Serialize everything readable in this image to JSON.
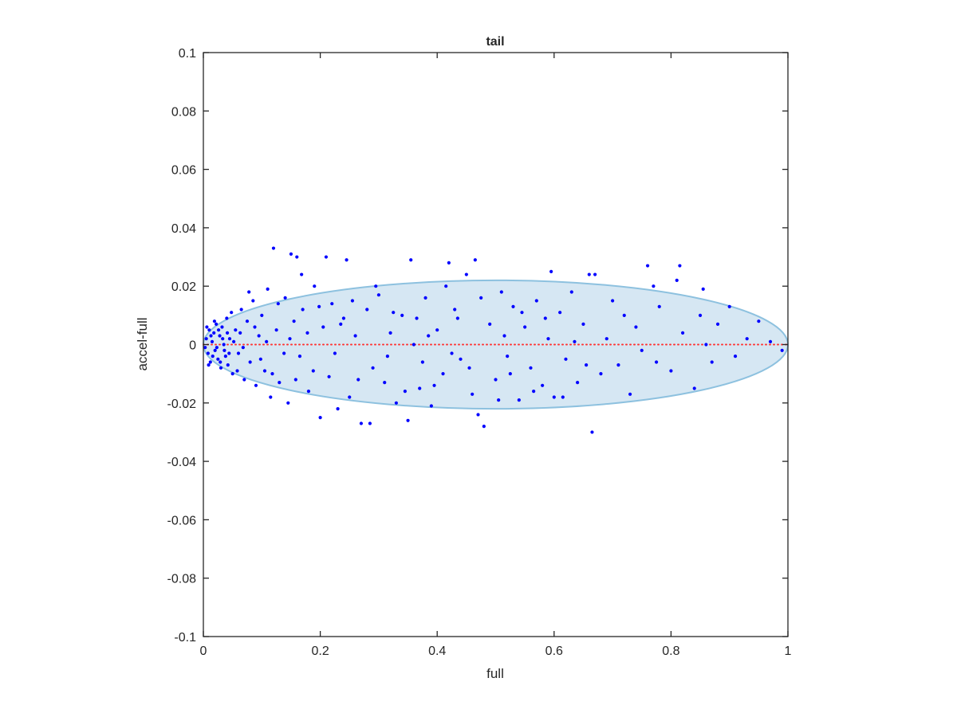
{
  "chart_data": {
    "type": "scatter",
    "title": "tail",
    "xlabel": "full",
    "ylabel": "accel-full",
    "color": "#0000ff",
    "x": [
      0.005,
      0.008,
      0.01,
      0.012,
      0.015,
      0.018,
      0.02,
      0.022,
      0.025,
      0.028,
      0.03,
      0.032,
      0.035,
      0.038,
      0.04,
      0.042,
      0.045,
      0.048,
      0.05,
      0.055,
      0.06,
      0.065,
      0.07,
      0.075,
      0.08,
      0.085,
      0.09,
      0.095,
      0.1,
      0.105,
      0.11,
      0.115,
      0.12,
      0.125,
      0.13,
      0.14,
      0.145,
      0.15,
      0.155,
      0.16,
      0.165,
      0.17,
      0.18,
      0.19,
      0.2,
      0.205,
      0.21,
      0.215,
      0.22,
      0.23,
      0.24,
      0.245,
      0.25,
      0.26,
      0.27,
      0.28,
      0.285,
      0.29,
      0.3,
      0.31,
      0.32,
      0.33,
      0.34,
      0.35,
      0.355,
      0.36,
      0.37,
      0.38,
      0.39,
      0.4,
      0.41,
      0.42,
      0.43,
      0.44,
      0.45,
      0.46,
      0.465,
      0.47,
      0.48,
      0.49,
      0.5,
      0.51,
      0.52,
      0.53,
      0.54,
      0.55,
      0.56,
      0.57,
      0.58,
      0.59,
      0.595,
      0.6,
      0.61,
      0.62,
      0.63,
      0.64,
      0.65,
      0.66,
      0.665,
      0.67,
      0.68,
      0.69,
      0.7,
      0.71,
      0.72,
      0.73,
      0.74,
      0.75,
      0.76,
      0.77,
      0.775,
      0.78,
      0.8,
      0.81,
      0.815,
      0.82,
      0.84,
      0.85,
      0.855,
      0.86,
      0.87,
      0.88,
      0.9,
      0.91,
      0.93,
      0.95,
      0.97,
      0.99,
      0.003,
      0.006,
      0.009,
      0.013,
      0.016,
      0.019,
      0.023,
      0.026,
      0.029,
      0.033,
      0.036,
      0.041,
      0.044,
      0.052,
      0.058,
      0.063,
      0.068,
      0.078,
      0.088,
      0.098,
      0.108,
      0.118,
      0.128,
      0.138,
      0.148,
      0.158,
      0.168,
      0.178,
      0.188,
      0.198,
      0.225,
      0.235,
      0.255,
      0.265,
      0.295,
      0.315,
      0.325,
      0.345,
      0.365,
      0.375,
      0.385,
      0.395,
      0.415,
      0.425,
      0.435,
      0.455,
      0.475,
      0.505,
      0.515,
      0.525,
      0.545,
      0.565,
      0.585,
      0.615,
      0.635,
      0.655
    ],
    "y": [
      0.002,
      -0.003,
      0.005,
      -0.006,
      0.001,
      0.004,
      -0.002,
      0.007,
      -0.005,
      0.003,
      -0.008,
      0.006,
      0,
      -0.004,
      0.009,
      -0.007,
      0.002,
      0.011,
      -0.01,
      0.005,
      -0.003,
      0.012,
      -0.012,
      0.008,
      -0.006,
      0.015,
      -0.014,
      0.003,
      0.01,
      -0.009,
      0.019,
      -0.018,
      0.033,
      0.005,
      -0.013,
      0.016,
      -0.02,
      0.031,
      0.008,
      0.03,
      -0.004,
      0.012,
      -0.016,
      0.02,
      -0.025,
      0.006,
      0.03,
      -0.011,
      0.014,
      -0.022,
      0.009,
      0.029,
      -0.018,
      0.003,
      -0.027,
      0.012,
      -0.027,
      -0.008,
      0.017,
      -0.013,
      0.004,
      -0.02,
      0.01,
      -0.026,
      0.029,
      0,
      -0.015,
      0.016,
      -0.021,
      0.005,
      -0.01,
      0.028,
      0.012,
      -0.005,
      0.024,
      -0.017,
      0.029,
      -0.024,
      -0.028,
      0.007,
      -0.012,
      0.018,
      -0.004,
      0.013,
      -0.019,
      0.006,
      -0.008,
      0.015,
      -0.014,
      0.002,
      0.025,
      -0.018,
      0.011,
      -0.005,
      0.018,
      -0.013,
      0.007,
      0.024,
      -0.03,
      0.024,
      -0.01,
      0.002,
      0.015,
      -0.007,
      0.01,
      -0.017,
      0.006,
      -0.002,
      0.027,
      0.02,
      -0.006,
      0.013,
      -0.009,
      0.022,
      0.027,
      0.004,
      -0.015,
      0.01,
      0.019,
      0,
      -0.006,
      0.007,
      0.013,
      -0.004,
      0.002,
      0.008,
      0.001,
      -0.002,
      -0.001,
      0.006,
      -0.007,
      0.003,
      -0.004,
      0.008,
      -0.001,
      0.005,
      -0.006,
      0.002,
      -0.002,
      0.004,
      -0.003,
      0.001,
      -0.009,
      0.004,
      -0.001,
      0.018,
      0.006,
      -0.005,
      0.001,
      -0.01,
      0.014,
      -0.003,
      0.002,
      -0.012,
      0.024,
      0.004,
      -0.009,
      0.013,
      -0.003,
      0.007,
      0.015,
      -0.012,
      0.02,
      -0.004,
      0.011,
      -0.016,
      0.009,
      -0.006,
      0.003,
      -0.014,
      0.02,
      -0.003,
      0.009,
      -0.008,
      0.016,
      -0.019,
      0.003,
      -0.01,
      0.011,
      -0.016,
      0.009,
      -0.018,
      0.001,
      -0.007
    ],
    "xlim": [
      0,
      1
    ],
    "ylim": [
      -0.1,
      0.1
    ],
    "xticks": [
      0,
      0.2,
      0.4,
      0.6,
      0.8,
      1
    ],
    "yticks": [
      -0.1,
      -0.08,
      -0.06,
      -0.04,
      -0.02,
      0,
      0.02,
      0.04,
      0.06,
      0.08,
      0.1
    ],
    "ellipse": {
      "xlim": [
        0,
        1
      ],
      "ylim": [
        -0.022,
        0.022
      ],
      "fill": "#d6e7f3",
      "stroke": "#8dc1df"
    },
    "reference_line": {
      "y": 0,
      "color": "#ff3333"
    },
    "grid": false
  }
}
